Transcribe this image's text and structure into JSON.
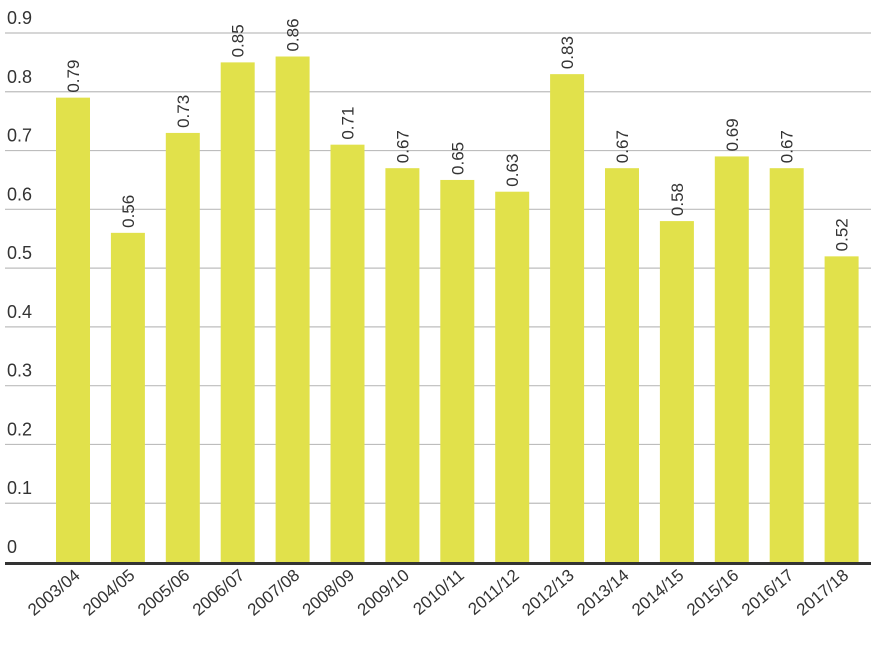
{
  "chart_data": {
    "type": "bar",
    "title": "",
    "xlabel": "",
    "ylabel": "",
    "ylim": [
      0,
      0.9
    ],
    "yticks": [
      "0",
      "0.1",
      "0.2",
      "0.3",
      "0.4",
      "0.5",
      "0.6",
      "0.7",
      "0.8",
      "0.9"
    ],
    "grid": true,
    "bar_color": "#e1e14b",
    "categories": [
      "2003/04",
      "2004/05",
      "2005/06",
      "2006/07",
      "2007/08",
      "2008/09",
      "2009/10",
      "2010/11",
      "2011/12",
      "2012/13",
      "2013/14",
      "2014/15",
      "2015/16",
      "2016/17",
      "2017/18"
    ],
    "values": [
      0.79,
      0.56,
      0.73,
      0.85,
      0.86,
      0.71,
      0.67,
      0.65,
      0.63,
      0.83,
      0.67,
      0.58,
      0.69,
      0.67,
      0.52
    ],
    "value_labels": [
      "0.79",
      "0.56",
      "0.73",
      "0.85",
      "0.86",
      "0.71",
      "0.67",
      "0.65",
      "0.63",
      "0.83",
      "0.67",
      "0.58",
      "0.69",
      "0.67",
      "0.52"
    ]
  }
}
